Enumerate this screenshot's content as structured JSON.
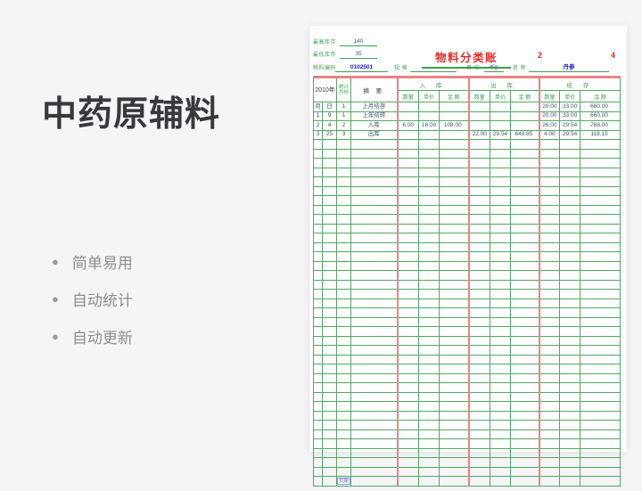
{
  "left_panel": {
    "title": "中药原辅料",
    "bullets": [
      "简单易用",
      "自动统计",
      "自动更新"
    ]
  },
  "ledger": {
    "title": "物料分类账",
    "page_numbers": [
      "2",
      "4"
    ],
    "top_info": {
      "max_stock_label": "最高库存",
      "max_stock_value": "140",
      "min_stock_label": "最低库存",
      "min_stock_value": "35",
      "material_code_label": "物料编码",
      "material_code_value": "0102501",
      "spec_label": "规  格",
      "spec_value": "",
      "unit_label": "单 位",
      "unit_value": "Kg",
      "name_label": "名 称",
      "name_value": "丹参"
    },
    "table": {
      "year_header": "2010年",
      "stat_month_header_line1": "统计",
      "stat_month_header_line2": "月份",
      "summary_header": "摘 要",
      "group_headers": [
        "入  库",
        "出  库",
        "结  存"
      ],
      "sub_headers": [
        "数量",
        "单价",
        "金 额"
      ],
      "rows": [
        {
          "month": "月",
          "day": "日",
          "stat": "1",
          "summary": "上月结存",
          "in": [
            "",
            "",
            ""
          ],
          "out": [
            "",
            "",
            ""
          ],
          "bal": [
            "20.00",
            "33.00",
            "660.00"
          ],
          "style": "opening"
        },
        {
          "month": "1",
          "day": "9",
          "stat": "1",
          "summary": "上年结转",
          "in": [
            "",
            "",
            ""
          ],
          "out": [
            "",
            "",
            ""
          ],
          "bal": [
            "20.00",
            "33.00",
            "660.00"
          ],
          "style": "carryover"
        },
        {
          "month": "2",
          "day": "4",
          "stat": "2",
          "summary": "入库",
          "in": [
            "6.00",
            "18.00",
            "108.00"
          ],
          "out": [
            "",
            "",
            ""
          ],
          "bal": [
            "26.00",
            "29.54",
            "768.00"
          ],
          "style": "normal"
        },
        {
          "month": "3",
          "day": "25",
          "stat": "3",
          "summary": "出库",
          "in": [
            "",
            "",
            ""
          ],
          "out": [
            "22.00",
            "29.54",
            "649.85"
          ],
          "bal": [
            "4.00",
            "29.54",
            "118.15"
          ],
          "style": "normal"
        }
      ],
      "empty_row_count": 36,
      "footer_label": "页尾"
    },
    "colors": {
      "grid_green": "#3f9d52",
      "group_salmon": "#e98383",
      "title_red": "#e32b24",
      "value_blue": "#1717c4",
      "value_navy": "#3c4e6b"
    }
  }
}
